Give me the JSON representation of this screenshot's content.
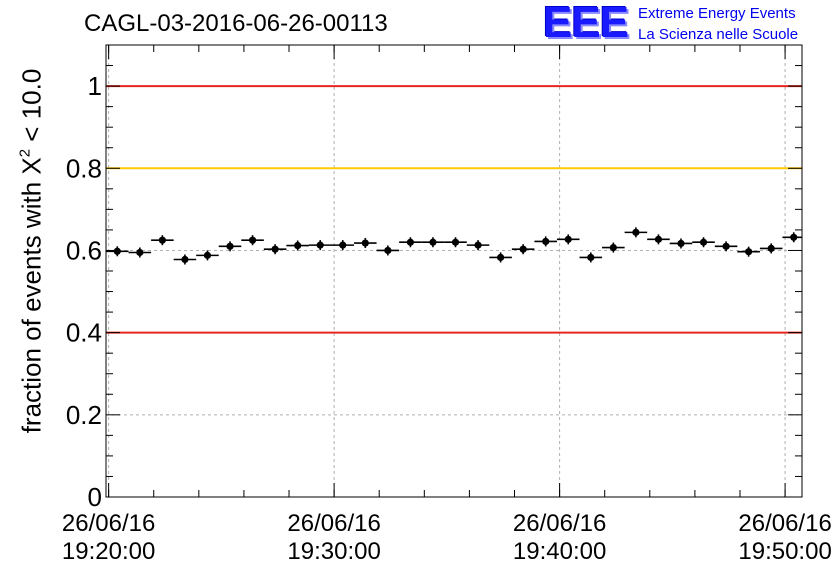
{
  "title": "CAGL-03-2016-06-26-00113",
  "logo": {
    "mark": "EEE",
    "line1": "Extreme Energy Events",
    "line2": "La Scienza nelle Scuole"
  },
  "chart_data": {
    "type": "scatter",
    "title": "CAGL-03-2016-06-26-00113",
    "ylabel_text": "fraction of events with X",
    "ylabel_sup": "2",
    "ylabel_suffix": " < 10.0",
    "xlabel": "",
    "xlim": [
      "26/06/16 19:19:53",
      "26/06/16 19:50:45"
    ],
    "ylim": [
      0,
      1.1
    ],
    "yticks": [
      "0",
      "0.2",
      "0.4",
      "0.6",
      "0.8",
      "1"
    ],
    "xticks": [
      {
        "date": "26/06/16",
        "time": "19:20:00"
      },
      {
        "date": "26/06/16",
        "time": "19:30:00"
      },
      {
        "date": "26/06/16",
        "time": "19:40:00"
      },
      {
        "date": "26/06/16",
        "time": "19:50:00"
      }
    ],
    "grid": true,
    "reference_lines": [
      {
        "y": 1.0,
        "color": "#e8261f"
      },
      {
        "y": 0.8,
        "color": "#ffcc00"
      },
      {
        "y": 0.4,
        "color": "#e8261f"
      }
    ],
    "bin_minutes": 1,
    "series": [
      {
        "x": [
          "19:20:23",
          "19:21:23",
          "19:22:23",
          "19:23:23",
          "19:24:23",
          "19:25:23",
          "19:26:23",
          "19:27:23",
          "19:28:23",
          "19:29:23",
          "19:30:23",
          "19:31:23",
          "19:32:23",
          "19:33:23",
          "19:34:23",
          "19:35:23",
          "19:36:23",
          "19:37:23",
          "19:38:23",
          "19:39:23",
          "19:40:23",
          "19:41:23",
          "19:42:23",
          "19:43:23",
          "19:44:23",
          "19:45:23",
          "19:46:23",
          "19:47:23",
          "19:48:23",
          "19:49:23",
          "19:50:23"
        ],
        "y": [
          0.598,
          0.595,
          0.625,
          0.578,
          0.588,
          0.61,
          0.625,
          0.603,
          0.612,
          0.613,
          0.613,
          0.618,
          0.6,
          0.62,
          0.62,
          0.62,
          0.613,
          0.583,
          0.603,
          0.622,
          0.627,
          0.583,
          0.607,
          0.644,
          0.627,
          0.617,
          0.62,
          0.61,
          0.597,
          0.605,
          0.632
        ]
      }
    ]
  }
}
